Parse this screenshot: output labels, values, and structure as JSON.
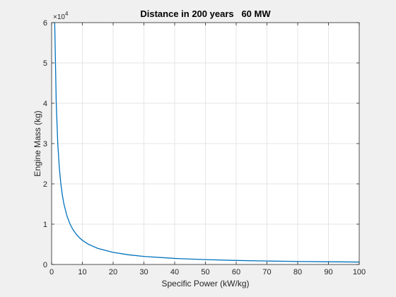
{
  "chart_data": {
    "type": "line",
    "title": "Distance in 200 years   60 MW",
    "xlabel": "Specific Power (kW/kg)",
    "ylabel": "Engine Mass (kg)",
    "xlim": [
      0,
      100
    ],
    "ylim": [
      0,
      60000
    ],
    "x_ticks": [
      0,
      10,
      20,
      30,
      40,
      50,
      60,
      70,
      80,
      90,
      100
    ],
    "y_ticks": [
      0,
      10000,
      20000,
      30000,
      40000,
      50000,
      60000
    ],
    "y_tick_labels": [
      "0",
      "1",
      "2",
      "3",
      "4",
      "5",
      "6"
    ],
    "y_exponent_base": "×10",
    "y_exponent_power": "4",
    "grid": true,
    "line_color": "#0072bd",
    "background_color": "#f0f0f0",
    "axes_color": "#ffffff",
    "series": [
      {
        "x": [
          1,
          1.5,
          2,
          2.5,
          3,
          3.5,
          4,
          5,
          6,
          7,
          8,
          9,
          10,
          12,
          15,
          20,
          25,
          30,
          40,
          50,
          60,
          70,
          80,
          90,
          100
        ],
        "y": [
          60000,
          40000,
          30000,
          24000,
          20000,
          17143,
          15000,
          12000,
          10000,
          8571,
          7500,
          6667,
          6000,
          5000,
          4000,
          3000,
          2400,
          2000,
          1500,
          1200,
          1000,
          857,
          750,
          667,
          600
        ]
      }
    ]
  }
}
